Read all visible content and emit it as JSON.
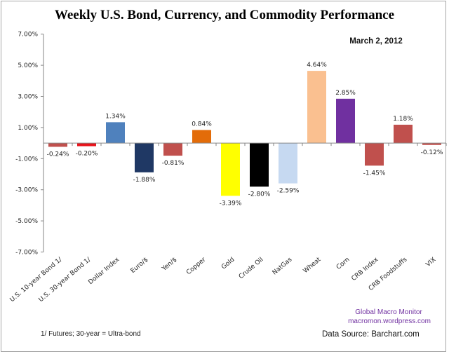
{
  "chart_data": {
    "type": "bar",
    "title": "Weekly U.S. Bond, Currency, and Commodity Performance",
    "subtitle": "March 2, 2012",
    "categories": [
      "U.S. 10-year Bond 1/",
      "U.S. 30-year Bond 1/",
      "Dollar Index",
      "Euro/$",
      "Yen/$",
      "Copper",
      "Gold",
      "Crude Oil",
      "NatGas",
      "Wheat",
      "Corn",
      "CRB Index",
      "CRB Foodstuffs",
      "VIX"
    ],
    "values": [
      -0.24,
      -0.2,
      1.34,
      -1.88,
      -0.81,
      0.84,
      -3.39,
      -2.8,
      -2.59,
      4.64,
      2.85,
      -1.45,
      1.18,
      -0.12
    ],
    "data_labels": [
      "-0.24%",
      "-0.20%",
      "1.34%",
      "-1.88%",
      "-0.81%",
      "0.84%",
      "-3.39%",
      "-2.80%",
      "-2.59%",
      "4.64%",
      "2.85%",
      "-1.45%",
      "1.18%",
      "-0.12%"
    ],
    "colors": [
      "#c0504d",
      "#e8141c",
      "#4f81bd",
      "#1f3864",
      "#c0504d",
      "#e36c09",
      "#ffff00",
      "#000000",
      "#c6d9f1",
      "#fac090",
      "#7030a0",
      "#c0504d",
      "#c0504d",
      "#c0504d"
    ],
    "ylim": [
      -7,
      7
    ],
    "yticks": [
      7,
      5,
      3,
      1,
      -1,
      -3,
      -5,
      -7
    ],
    "ytick_labels": [
      "7.00%",
      "5.00%",
      "3.00%",
      "1.00%",
      "-1.00%",
      "-3.00%",
      "-5.00%",
      "-7.00%"
    ],
    "grid": false,
    "legend": "none",
    "xlabel": "",
    "ylabel": ""
  },
  "footnote": "1/ Futures; 30-year = Ultra-bond",
  "credit_line1": "Global Macro Monitor",
  "credit_line2": "macromon.wordpress.com",
  "data_source": "Data Source:  Barchart.com"
}
